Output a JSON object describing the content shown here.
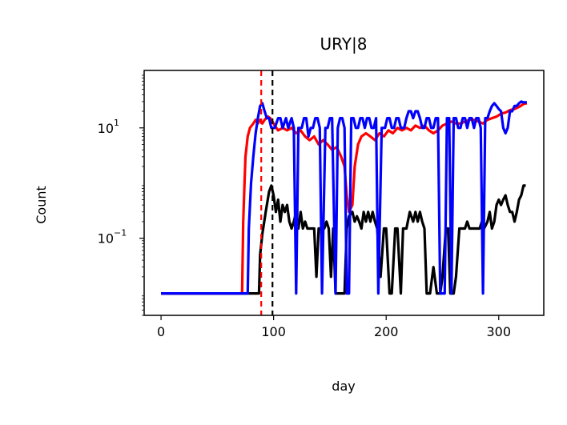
{
  "chart_data": {
    "type": "line",
    "title": "URY|8",
    "xlabel": "day",
    "ylabel": "Count",
    "y_scale": "log",
    "xlim": [
      -15,
      340
    ],
    "ylim": [
      0.004,
      110
    ],
    "x_ticks": [
      {
        "value": 0,
        "label": "0"
      },
      {
        "value": 100,
        "label": "100"
      },
      {
        "value": 200,
        "label": "200"
      },
      {
        "value": 300,
        "label": "300"
      }
    ],
    "y_ticks": [
      {
        "value": 0.1,
        "base": "10",
        "exp": "−1"
      },
      {
        "value": 10,
        "base": "10",
        "exp": "1"
      }
    ],
    "grid": false,
    "legend": "none",
    "vlines": [
      {
        "x": 89,
        "color": "#ff0000",
        "style": "dashed"
      },
      {
        "x": 99,
        "color": "#000000",
        "style": "dashed"
      }
    ],
    "series": [
      {
        "color": "#ff0000",
        "points": [
          [
            0,
            0.01
          ],
          [
            72,
            0.01
          ],
          [
            73,
            0.2
          ],
          [
            74,
            0.8
          ],
          [
            75,
            3
          ],
          [
            77,
            7
          ],
          [
            79,
            10
          ],
          [
            82,
            12
          ],
          [
            84,
            14
          ],
          [
            86,
            12
          ],
          [
            88,
            14
          ],
          [
            90,
            12
          ],
          [
            92,
            14
          ],
          [
            95,
            16
          ],
          [
            97,
            15
          ],
          [
            99,
            13
          ],
          [
            101,
            11
          ],
          [
            104,
            9
          ],
          [
            108,
            10
          ],
          [
            112,
            9
          ],
          [
            116,
            10
          ],
          [
            120,
            8
          ],
          [
            124,
            9
          ],
          [
            128,
            7
          ],
          [
            132,
            6
          ],
          [
            136,
            7
          ],
          [
            140,
            5
          ],
          [
            144,
            6
          ],
          [
            148,
            5
          ],
          [
            152,
            4
          ],
          [
            156,
            4.5
          ],
          [
            160,
            3
          ],
          [
            163,
            2
          ],
          [
            165,
            0.6
          ],
          [
            167,
            0.3
          ],
          [
            170,
            0.4
          ],
          [
            172,
            2
          ],
          [
            175,
            5
          ],
          [
            178,
            7
          ],
          [
            182,
            8
          ],
          [
            186,
            7
          ],
          [
            190,
            6
          ],
          [
            194,
            8
          ],
          [
            198,
            7
          ],
          [
            202,
            9
          ],
          [
            206,
            8
          ],
          [
            210,
            10
          ],
          [
            214,
            9
          ],
          [
            218,
            10
          ],
          [
            222,
            9
          ],
          [
            226,
            11
          ],
          [
            230,
            10
          ],
          [
            234,
            11
          ],
          [
            238,
            9
          ],
          [
            242,
            8
          ],
          [
            246,
            9
          ],
          [
            250,
            11
          ],
          [
            254,
            12
          ],
          [
            258,
            13
          ],
          [
            262,
            12
          ],
          [
            266,
            12
          ],
          [
            270,
            13
          ],
          [
            274,
            14
          ],
          [
            278,
            14
          ],
          [
            282,
            13
          ],
          [
            286,
            12
          ],
          [
            290,
            14
          ],
          [
            294,
            15
          ],
          [
            298,
            16
          ],
          [
            302,
            18
          ],
          [
            306,
            19
          ],
          [
            310,
            21
          ],
          [
            314,
            22
          ],
          [
            318,
            24
          ],
          [
            322,
            27
          ],
          [
            325,
            28
          ]
        ]
      },
      {
        "color": "#000000",
        "points": [
          [
            0,
            0.01
          ],
          [
            87,
            0.01
          ],
          [
            88,
            0.05
          ],
          [
            90,
            0.12
          ],
          [
            93,
            0.3
          ],
          [
            96,
            0.7
          ],
          [
            98,
            0.9
          ],
          [
            100,
            0.6
          ],
          [
            102,
            0.3
          ],
          [
            104,
            0.5
          ],
          [
            106,
            0.2
          ],
          [
            108,
            0.4
          ],
          [
            110,
            0.3
          ],
          [
            112,
            0.4
          ],
          [
            114,
            0.2
          ],
          [
            116,
            0.15
          ],
          [
            118,
            0.2
          ],
          [
            120,
            0.3
          ],
          [
            122,
            0.15
          ],
          [
            124,
            0.3
          ],
          [
            126,
            0.15
          ],
          [
            128,
            0.2
          ],
          [
            130,
            0.15
          ],
          [
            133,
            0.15
          ],
          [
            136,
            0.15
          ],
          [
            138,
            0.02
          ],
          [
            140,
            0.15
          ],
          [
            143,
            0.15
          ],
          [
            145,
            0.15
          ],
          [
            147,
            0.2
          ],
          [
            149,
            0.15
          ],
          [
            151,
            0.02
          ],
          [
            153,
            0.15
          ],
          [
            155,
            0.01
          ],
          [
            157,
            0.01
          ],
          [
            160,
            0.01
          ],
          [
            163,
            0.01
          ],
          [
            165,
            0.15
          ],
          [
            167,
            0.25
          ],
          [
            170,
            0.3
          ],
          [
            172,
            0.2
          ],
          [
            174,
            0.25
          ],
          [
            176,
            0.2
          ],
          [
            178,
            0.15
          ],
          [
            180,
            0.3
          ],
          [
            182,
            0.2
          ],
          [
            184,
            0.3
          ],
          [
            186,
            0.2
          ],
          [
            188,
            0.3
          ],
          [
            190,
            0.2
          ],
          [
            192,
            0.15
          ],
          [
            195,
            0.02
          ],
          [
            198,
            0.15
          ],
          [
            200,
            0.15
          ],
          [
            203,
            0.01
          ],
          [
            205,
            0.01
          ],
          [
            208,
            0.15
          ],
          [
            210,
            0.15
          ],
          [
            213,
            0.01
          ],
          [
            215,
            0.15
          ],
          [
            218,
            0.15
          ],
          [
            221,
            0.3
          ],
          [
            224,
            0.2
          ],
          [
            226,
            0.3
          ],
          [
            228,
            0.2
          ],
          [
            230,
            0.3
          ],
          [
            232,
            0.2
          ],
          [
            234,
            0.15
          ],
          [
            236,
            0.01
          ],
          [
            239,
            0.01
          ],
          [
            242,
            0.03
          ],
          [
            245,
            0.01
          ],
          [
            248,
            0.01
          ],
          [
            250,
            0.02
          ],
          [
            253,
            0.15
          ],
          [
            255,
            0.15
          ],
          [
            257,
            0.01
          ],
          [
            260,
            0.01
          ],
          [
            262,
            0.02
          ],
          [
            265,
            0.15
          ],
          [
            267,
            0.15
          ],
          [
            270,
            0.15
          ],
          [
            272,
            0.2
          ],
          [
            274,
            0.15
          ],
          [
            277,
            0.15
          ],
          [
            280,
            0.15
          ],
          [
            283,
            0.15
          ],
          [
            285,
            0.2
          ],
          [
            287,
            0.15
          ],
          [
            290,
            0.2
          ],
          [
            292,
            0.3
          ],
          [
            294,
            0.15
          ],
          [
            296,
            0.2
          ],
          [
            298,
            0.4
          ],
          [
            300,
            0.5
          ],
          [
            302,
            0.4
          ],
          [
            304,
            0.5
          ],
          [
            306,
            0.6
          ],
          [
            308,
            0.4
          ],
          [
            310,
            0.3
          ],
          [
            312,
            0.3
          ],
          [
            314,
            0.2
          ],
          [
            316,
            0.3
          ],
          [
            318,
            0.5
          ],
          [
            320,
            0.6
          ],
          [
            322,
            0.9
          ],
          [
            324,
            0.9
          ]
        ]
      },
      {
        "color": "#0000ff",
        "points": [
          [
            0,
            0.01
          ],
          [
            77,
            0.01
          ],
          [
            78,
            0.15
          ],
          [
            80,
            1
          ],
          [
            82,
            3
          ],
          [
            84,
            8
          ],
          [
            86,
            15
          ],
          [
            88,
            25
          ],
          [
            90,
            28
          ],
          [
            92,
            20
          ],
          [
            94,
            15
          ],
          [
            96,
            15
          ],
          [
            98,
            10
          ],
          [
            101,
            10
          ],
          [
            104,
            15
          ],
          [
            106,
            15
          ],
          [
            108,
            10
          ],
          [
            111,
            15
          ],
          [
            113,
            10
          ],
          [
            116,
            15
          ],
          [
            118,
            10
          ],
          [
            120,
            0.01
          ],
          [
            122,
            10
          ],
          [
            125,
            10
          ],
          [
            127,
            15
          ],
          [
            129,
            15
          ],
          [
            131,
            7
          ],
          [
            133,
            10
          ],
          [
            135,
            10
          ],
          [
            137,
            15
          ],
          [
            139,
            15
          ],
          [
            141,
            10
          ],
          [
            143,
            0.01
          ],
          [
            146,
            10
          ],
          [
            148,
            10
          ],
          [
            150,
            15
          ],
          [
            152,
            15
          ],
          [
            155,
            0.01
          ],
          [
            157,
            10
          ],
          [
            159,
            15
          ],
          [
            161,
            15
          ],
          [
            163,
            10
          ],
          [
            165,
            0.01
          ],
          [
            167,
            0.01
          ],
          [
            169,
            15
          ],
          [
            171,
            15
          ],
          [
            173,
            10
          ],
          [
            175,
            10
          ],
          [
            177,
            15
          ],
          [
            179,
            15
          ],
          [
            181,
            10
          ],
          [
            183,
            15
          ],
          [
            185,
            15
          ],
          [
            187,
            10
          ],
          [
            189,
            10
          ],
          [
            191,
            15
          ],
          [
            193,
            0.01
          ],
          [
            196,
            10
          ],
          [
            199,
            10
          ],
          [
            201,
            15
          ],
          [
            203,
            15
          ],
          [
            205,
            10
          ],
          [
            207,
            10
          ],
          [
            209,
            15
          ],
          [
            211,
            15
          ],
          [
            213,
            10
          ],
          [
            216,
            10
          ],
          [
            218,
            15
          ],
          [
            220,
            20
          ],
          [
            222,
            20
          ],
          [
            224,
            15
          ],
          [
            226,
            20
          ],
          [
            228,
            20
          ],
          [
            230,
            15
          ],
          [
            232,
            10
          ],
          [
            234,
            10
          ],
          [
            236,
            15
          ],
          [
            238,
            15
          ],
          [
            240,
            10
          ],
          [
            242,
            10
          ],
          [
            244,
            15
          ],
          [
            246,
            15
          ],
          [
            248,
            0.01
          ],
          [
            250,
            0.01
          ],
          [
            252,
            0.01
          ],
          [
            254,
            15
          ],
          [
            256,
            15
          ],
          [
            258,
            0.01
          ],
          [
            260,
            15
          ],
          [
            262,
            15
          ],
          [
            264,
            10
          ],
          [
            266,
            10
          ],
          [
            268,
            15
          ],
          [
            270,
            15
          ],
          [
            272,
            10
          ],
          [
            274,
            15
          ],
          [
            276,
            15
          ],
          [
            278,
            10
          ],
          [
            280,
            15
          ],
          [
            282,
            15
          ],
          [
            284,
            10
          ],
          [
            286,
            0.01
          ],
          [
            288,
            15
          ],
          [
            290,
            15
          ],
          [
            292,
            20
          ],
          [
            294,
            25
          ],
          [
            296,
            28
          ],
          [
            298,
            25
          ],
          [
            300,
            22
          ],
          [
            302,
            20
          ],
          [
            304,
            10
          ],
          [
            306,
            8
          ],
          [
            308,
            10
          ],
          [
            310,
            20
          ],
          [
            312,
            20
          ],
          [
            314,
            25
          ],
          [
            316,
            25
          ],
          [
            318,
            28
          ],
          [
            320,
            30
          ],
          [
            322,
            29
          ],
          [
            325,
            29
          ]
        ]
      }
    ]
  }
}
